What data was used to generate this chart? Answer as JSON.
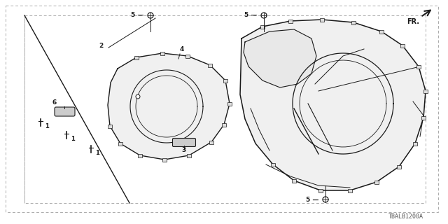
{
  "background_color": "#ffffff",
  "diagram_code": "TBALB1200A",
  "line_color": "#1a1a1a",
  "dashed_color": "#555555",
  "fill_color": "#f0f0f0"
}
